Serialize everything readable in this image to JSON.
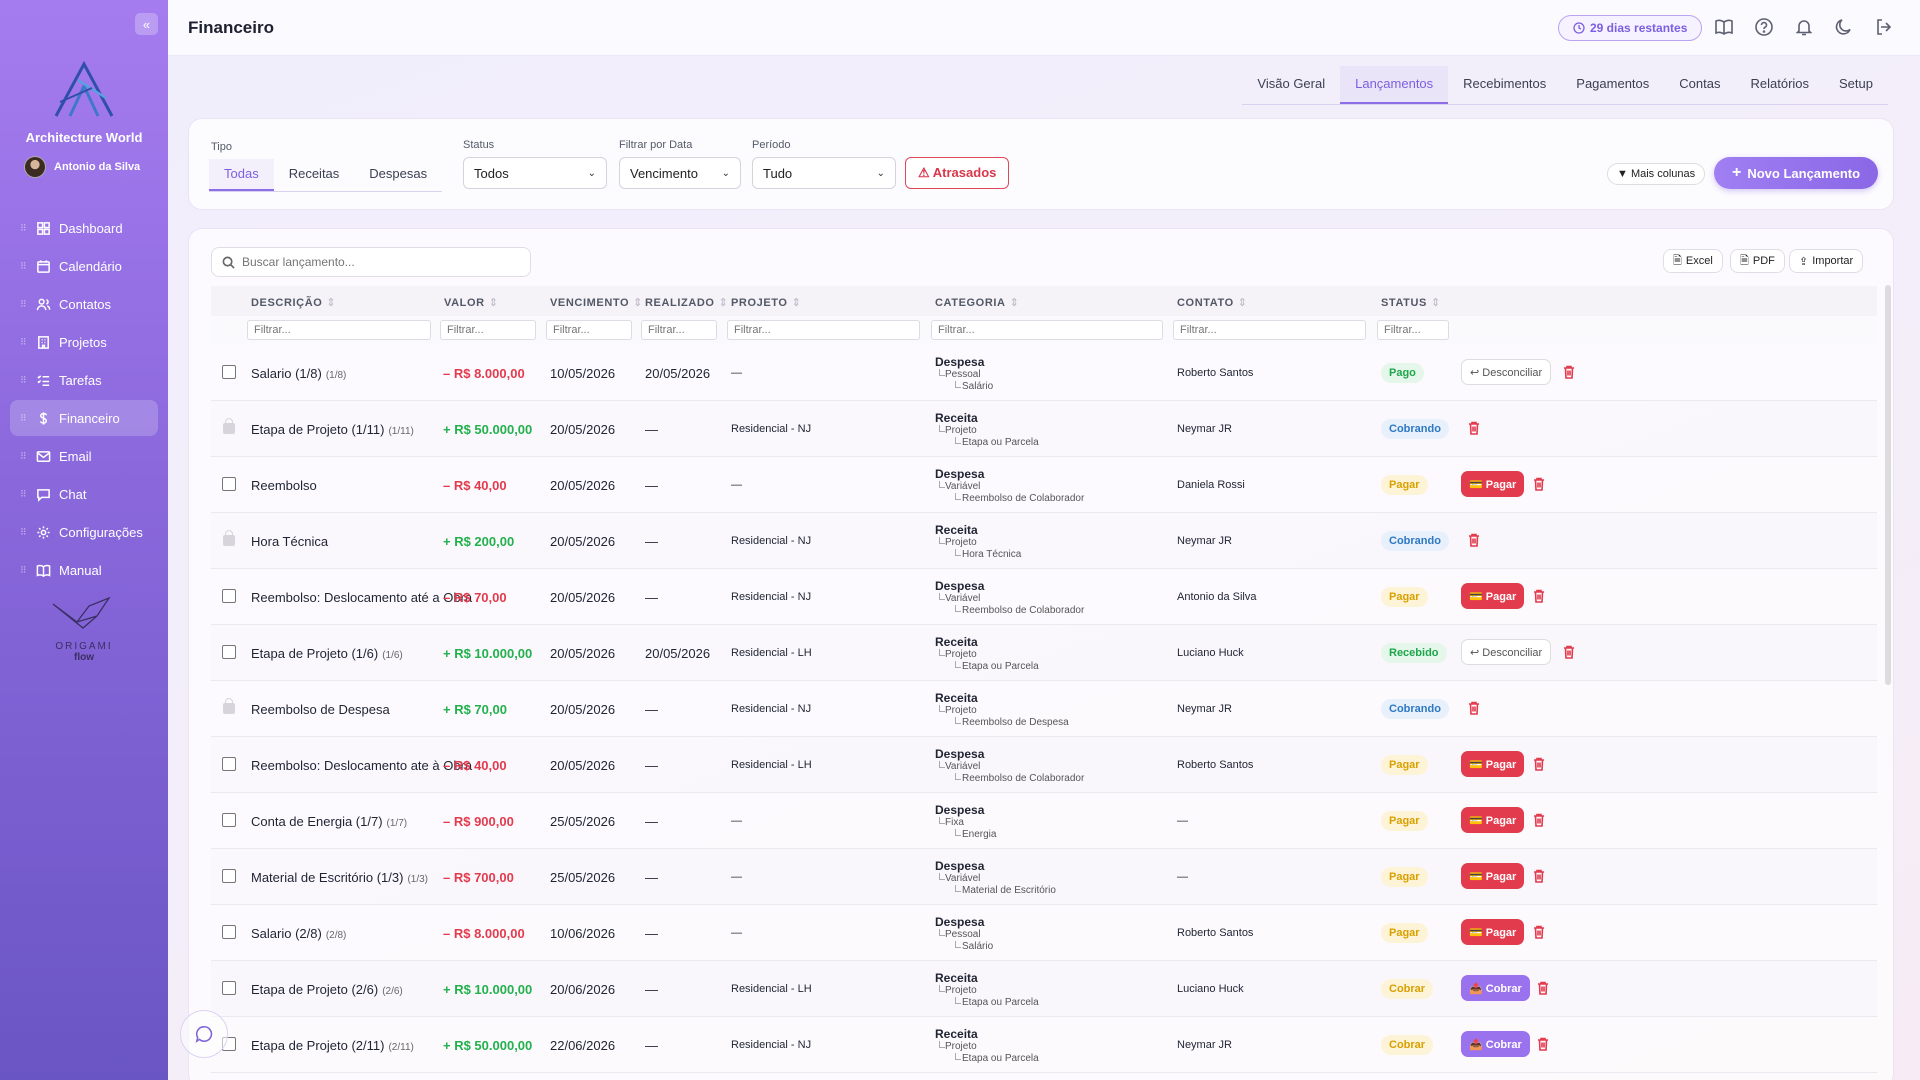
{
  "sidebar": {
    "company": "Architecture World",
    "user": "Antonio da Silva",
    "items": [
      {
        "label": "Dashboard",
        "icon": "grid-icon"
      },
      {
        "label": "Calendário",
        "icon": "calendar-icon"
      },
      {
        "label": "Contatos",
        "icon": "users-icon"
      },
      {
        "label": "Projetos",
        "icon": "building-icon"
      },
      {
        "label": "Tarefas",
        "icon": "list-icon"
      },
      {
        "label": "Financeiro",
        "icon": "dollar-icon"
      },
      {
        "label": "Email",
        "icon": "mail-icon"
      },
      {
        "label": "Chat",
        "icon": "chat-icon"
      },
      {
        "label": "Configurações",
        "icon": "gear-icon"
      },
      {
        "label": "Manual",
        "icon": "book-icon"
      }
    ],
    "active_item": "Financeiro",
    "origami_text": "ORIGAMI",
    "flow_text": "flow"
  },
  "header": {
    "title": "Financeiro",
    "trial": "29 dias restantes"
  },
  "tabs": [
    "Visão Geral",
    "Lançamentos",
    "Recebimentos",
    "Pagamentos",
    "Contas",
    "Relatórios",
    "Setup"
  ],
  "active_tab": "Lançamentos",
  "filters": {
    "tipo_label": "Tipo",
    "tipo_options": [
      "Todas",
      "Receitas",
      "Despesas"
    ],
    "tipo_selected": "Todas",
    "status_label": "Status",
    "status_value": "Todos",
    "data_label": "Filtrar por Data",
    "data_value": "Vencimento",
    "periodo_label": "Período",
    "periodo_value": "Tudo",
    "late_button": "⚠ Atrasados",
    "more_columns": "▼ Mais colunas",
    "new_button": "Novo Lançamento"
  },
  "table": {
    "search_placeholder": "Buscar lançamento...",
    "export": {
      "excel": "Excel",
      "pdf": "PDF",
      "import": "Importar"
    },
    "columns": [
      "DESCRIÇÃO",
      "VALOR",
      "VENCIMENTO",
      "REALIZADO",
      "PROJETO",
      "CATEGORIA",
      "CONTATO",
      "STATUS"
    ],
    "filter_placeholder": "Filtrar...",
    "rows": [
      {
        "locked": false,
        "desc": "Salario (1/8)",
        "sub": "(1/8)",
        "valor": "– R$ 8.000,00",
        "sign": "neg",
        "venc": "10/05/2026",
        "real": "20/05/2026",
        "proj": "—",
        "cat": "Despesa",
        "cat1": "Pessoal",
        "cat2": "Salário",
        "contato": "Roberto Santos",
        "status": "Pago",
        "stype": "pago",
        "action": "↩ Desconciliar",
        "atype": "desc"
      },
      {
        "locked": true,
        "desc": "Etapa de Projeto (1/11)",
        "sub": "(1/11)",
        "valor": "+ R$ 50.000,00",
        "sign": "pos",
        "venc": "20/05/2026",
        "real": "—",
        "proj": "Residencial - NJ",
        "cat": "Receita",
        "cat1": "Projeto",
        "cat2": "Etapa ou Parcela",
        "contato": "Neymar JR",
        "status": "Cobrando",
        "stype": "cobrando",
        "action": "",
        "atype": ""
      },
      {
        "locked": false,
        "desc": "Reembolso",
        "sub": "",
        "valor": "– R$ 40,00",
        "sign": "neg",
        "venc": "20/05/2026",
        "real": "—",
        "proj": "—",
        "cat": "Despesa",
        "cat1": "Variável",
        "cat2": "Reembolso de Colaborador",
        "contato": "Daniela Rossi",
        "status": "Pagar",
        "stype": "pagar",
        "action": "💳 Pagar",
        "atype": "pagar"
      },
      {
        "locked": true,
        "desc": "Hora Técnica",
        "sub": "",
        "valor": "+ R$ 200,00",
        "sign": "pos",
        "venc": "20/05/2026",
        "real": "—",
        "proj": "Residencial - NJ",
        "cat": "Receita",
        "cat1": "Projeto",
        "cat2": "Hora Técnica",
        "contato": "Neymar JR",
        "status": "Cobrando",
        "stype": "cobrando",
        "action": "",
        "atype": ""
      },
      {
        "locked": false,
        "desc": "Reembolso: Deslocamento até a Obra",
        "sub": "",
        "valor": "– R$ 70,00",
        "sign": "neg",
        "venc": "20/05/2026",
        "real": "—",
        "proj": "Residencial - NJ",
        "cat": "Despesa",
        "cat1": "Variável",
        "cat2": "Reembolso de Colaborador",
        "contato": "Antonio da Silva",
        "status": "Pagar",
        "stype": "pagar",
        "action": "💳 Pagar",
        "atype": "pagar"
      },
      {
        "locked": false,
        "desc": "Etapa de Projeto (1/6)",
        "sub": "(1/6)",
        "valor": "+ R$ 10.000,00",
        "sign": "pos",
        "venc": "20/05/2026",
        "real": "20/05/2026",
        "proj": "Residencial - LH",
        "cat": "Receita",
        "cat1": "Projeto",
        "cat2": "Etapa ou Parcela",
        "contato": "Luciano Huck",
        "status": "Recebido",
        "stype": "recebido",
        "action": "↩ Desconciliar",
        "atype": "desc"
      },
      {
        "locked": true,
        "desc": "Reembolso de Despesa",
        "sub": "",
        "valor": "+ R$ 70,00",
        "sign": "pos",
        "venc": "20/05/2026",
        "real": "—",
        "proj": "Residencial - NJ",
        "cat": "Receita",
        "cat1": "Projeto",
        "cat2": "Reembolso de Despesa",
        "contato": "Neymar JR",
        "status": "Cobrando",
        "stype": "cobrando",
        "action": "",
        "atype": ""
      },
      {
        "locked": false,
        "desc": "Reembolso: Deslocamento ate à Obra",
        "sub": "",
        "valor": "– R$ 40,00",
        "sign": "neg",
        "venc": "20/05/2026",
        "real": "—",
        "proj": "Residencial - LH",
        "cat": "Despesa",
        "cat1": "Variável",
        "cat2": "Reembolso de Colaborador",
        "contato": "Roberto Santos",
        "status": "Pagar",
        "stype": "pagar",
        "action": "💳 Pagar",
        "atype": "pagar"
      },
      {
        "locked": false,
        "desc": "Conta de Energia (1/7)",
        "sub": "(1/7)",
        "valor": "– R$ 900,00",
        "sign": "neg",
        "venc": "25/05/2026",
        "real": "—",
        "proj": "—",
        "cat": "Despesa",
        "cat1": "Fixa",
        "cat2": "Energia",
        "contato": "—",
        "status": "Pagar",
        "stype": "pagar",
        "action": "💳 Pagar",
        "atype": "pagar"
      },
      {
        "locked": false,
        "desc": "Material de Escritório (1/3)",
        "sub": "(1/3)",
        "valor": "– R$ 700,00",
        "sign": "neg",
        "venc": "25/05/2026",
        "real": "—",
        "proj": "—",
        "cat": "Despesa",
        "cat1": "Variável",
        "cat2": "Material de Escritório",
        "contato": "—",
        "status": "Pagar",
        "stype": "pagar",
        "action": "💳 Pagar",
        "atype": "pagar"
      },
      {
        "locked": false,
        "desc": "Salario (2/8)",
        "sub": "(2/8)",
        "valor": "– R$ 8.000,00",
        "sign": "neg",
        "venc": "10/06/2026",
        "real": "—",
        "proj": "—",
        "cat": "Despesa",
        "cat1": "Pessoal",
        "cat2": "Salário",
        "contato": "Roberto Santos",
        "status": "Pagar",
        "stype": "pagar",
        "action": "💳 Pagar",
        "atype": "pagar"
      },
      {
        "locked": false,
        "desc": "Etapa de Projeto (2/6)",
        "sub": "(2/6)",
        "valor": "+ R$ 10.000,00",
        "sign": "pos",
        "venc": "20/06/2026",
        "real": "—",
        "proj": "Residencial - LH",
        "cat": "Receita",
        "cat1": "Projeto",
        "cat2": "Etapa ou Parcela",
        "contato": "Luciano Huck",
        "status": "Cobrar",
        "stype": "cobrar",
        "action": "📤 Cobrar",
        "atype": "cobrar"
      },
      {
        "locked": false,
        "desc": "Etapa de Projeto (2/11)",
        "sub": "(2/11)",
        "valor": "+ R$ 50.000,00",
        "sign": "pos",
        "venc": "22/06/2026",
        "real": "—",
        "proj": "Residencial - NJ",
        "cat": "Receita",
        "cat1": "Projeto",
        "cat2": "Etapa ou Parcela",
        "contato": "Neymar JR",
        "status": "Cobrar",
        "stype": "cobrar",
        "action": "📤 Cobrar",
        "atype": "cobrar"
      }
    ]
  }
}
